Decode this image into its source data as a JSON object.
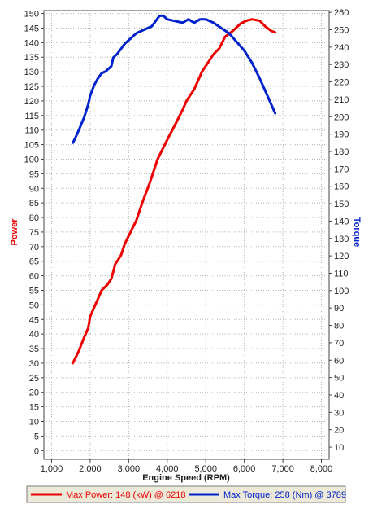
{
  "chart_data": {
    "type": "line",
    "xlabel": "Engine Speed (RPM)",
    "ylabel_left": "Power",
    "ylabel_right": "Torque",
    "x_ticks": [
      "1,000",
      "2,000",
      "3,000",
      "4,000",
      "5,000",
      "6,000",
      "7,000",
      "8,000"
    ],
    "xlim": [
      800,
      8200
    ],
    "ylim_left": [
      -3,
      151
    ],
    "ylim_right": [
      3,
      261
    ],
    "left_ticks": [
      0,
      5,
      10,
      15,
      20,
      25,
      30,
      35,
      40,
      45,
      50,
      55,
      60,
      65,
      70,
      75,
      80,
      85,
      90,
      95,
      100,
      105,
      110,
      115,
      120,
      125,
      130,
      135,
      140,
      145,
      150
    ],
    "right_ticks": [
      10,
      20,
      30,
      40,
      50,
      60,
      70,
      80,
      90,
      100,
      110,
      120,
      130,
      140,
      150,
      160,
      170,
      180,
      190,
      200,
      210,
      220,
      230,
      240,
      250,
      260
    ],
    "grid": true,
    "legend_position": "bottom",
    "series": [
      {
        "name": "Power",
        "axis": "left",
        "color": "#ee0000",
        "legend_label": "Max Power: 148 (kW) @ 6218",
        "x": [
          1550,
          1700,
          1850,
          1950,
          2000,
          2100,
          2200,
          2300,
          2450,
          2550,
          2650,
          2800,
          2900,
          3050,
          3200,
          3350,
          3550,
          3750,
          3900,
          4050,
          4250,
          4400,
          4500,
          4700,
          4900,
          5050,
          5200,
          5350,
          5500,
          5700,
          5900,
          6050,
          6200,
          6400,
          6550,
          6700,
          6800
        ],
        "values": [
          30,
          34,
          39,
          42,
          46,
          49,
          52,
          55,
          57,
          59,
          64,
          67,
          71,
          75,
          79,
          85,
          92,
          100,
          104,
          108,
          113,
          117,
          120,
          124,
          130,
          133,
          136,
          138,
          142,
          144,
          146.5,
          147.5,
          148,
          147.5,
          145.5,
          144,
          143.5
        ]
      },
      {
        "name": "Torque",
        "axis": "right",
        "color": "#0022cc",
        "legend_label": "Max Torque: 258 (Nm) @ 3789",
        "x": [
          1550,
          1600,
          1700,
          1850,
          1950,
          2000,
          2100,
          2200,
          2300,
          2400,
          2550,
          2600,
          2700,
          2800,
          2900,
          3050,
          3200,
          3400,
          3600,
          3700,
          3800,
          3900,
          4000,
          4200,
          4400,
          4550,
          4700,
          4850,
          5000,
          5200,
          5400,
          5600,
          5800,
          6000,
          6200,
          6400,
          6600,
          6800
        ],
        "values": [
          185,
          187,
          192,
          200,
          207,
          212,
          218,
          222,
          225,
          226,
          229,
          234,
          236,
          239,
          242,
          245,
          248,
          250,
          252,
          255,
          258,
          258,
          256,
          255,
          254,
          256,
          254,
          256,
          256,
          254,
          251,
          248,
          243,
          238,
          231,
          222,
          212,
          202
        ]
      }
    ]
  }
}
